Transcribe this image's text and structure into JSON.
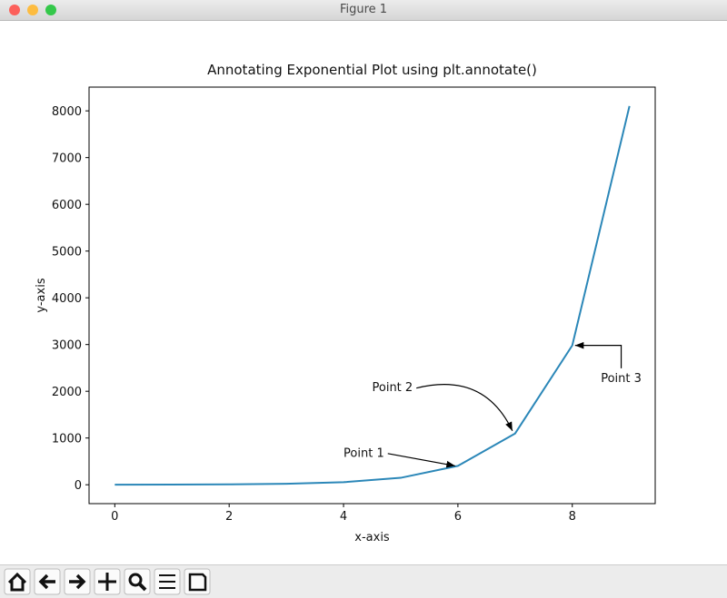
{
  "window_title": "Figure 1",
  "chart_data": {
    "type": "line",
    "title": "Annotating Exponential Plot using plt.annotate()",
    "x_label": "x-axis",
    "y_label": "y-axis",
    "x": [
      0,
      1,
      2,
      3,
      4,
      5,
      6,
      7,
      8,
      9
    ],
    "values": [
      1,
      2.72,
      7.39,
      20.09,
      54.6,
      148.4,
      403.4,
      1096.6,
      2981,
      8103
    ],
    "color": "#2b87b8",
    "xlim": [
      -0.45,
      9.45
    ],
    "xticks": [
      0,
      2,
      4,
      6,
      8
    ],
    "ylim": [
      -404,
      8508
    ],
    "yticks": [
      0,
      1000,
      2000,
      3000,
      4000,
      5000,
      6000,
      7000,
      8000
    ],
    "grid": false,
    "annotations": [
      {
        "text": "Point 1",
        "xy": [
          6,
          403.4
        ],
        "xytext": [
          4,
          600
        ],
        "arrow": "straight"
      },
      {
        "text": "Point 2",
        "xy": [
          7,
          1096.6
        ],
        "xytext": [
          4.5,
          2000
        ],
        "arrow": "arc"
      },
      {
        "text": "Point 3",
        "xy": [
          8,
          2981
        ],
        "xytext": [
          8.5,
          2200
        ],
        "arrow": "angle"
      }
    ]
  }
}
